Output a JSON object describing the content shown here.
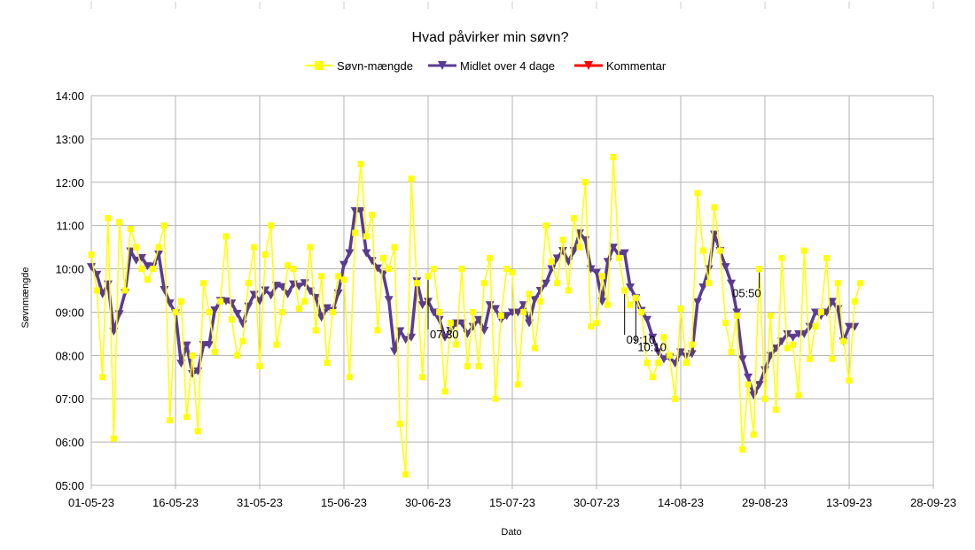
{
  "chart_data": {
    "type": "line",
    "title": "Hvad påvirker min søvn?",
    "xlabel": "Dato",
    "ylabel": "Søvnmængde",
    "x_ticks": [
      "01-05-23",
      "16-05-23",
      "31-05-23",
      "15-06-23",
      "30-06-23",
      "15-07-23",
      "30-07-23",
      "14-08-23",
      "29-08-23",
      "13-09-23",
      "28-09-23"
    ],
    "y_ticks": [
      "05:00",
      "06:00",
      "07:00",
      "08:00",
      "09:00",
      "10:00",
      "11:00",
      "12:00",
      "13:00",
      "14:00"
    ],
    "x_range": [
      "01-05-23",
      "28-09-23"
    ],
    "y_range_hours": [
      5,
      14
    ],
    "grid": true,
    "legend_position": "top",
    "series": [
      {
        "name": "Søvn-mængde",
        "color": "#ffff00",
        "marker": "square",
        "start_date": "01-05-23",
        "values_hours": [
          10.33,
          9.5,
          7.5,
          11.17,
          6.08,
          11.08,
          9.5,
          10.92,
          10.5,
          10.0,
          9.75,
          10.0,
          10.5,
          11.0,
          6.5,
          9.0,
          9.25,
          6.58,
          8.0,
          6.25,
          9.67,
          9.0,
          8.08,
          9.25,
          10.75,
          8.83,
          8.0,
          8.33,
          9.67,
          10.5,
          7.75,
          10.33,
          11.0,
          8.25,
          9.0,
          10.08,
          10.0,
          9.08,
          9.25,
          10.5,
          8.58,
          9.83,
          7.83,
          9.0,
          9.83,
          9.75,
          7.5,
          10.83,
          12.42,
          10.75,
          11.25,
          8.58,
          10.25,
          10.0,
          10.5,
          6.42,
          5.25,
          12.08,
          9.67,
          7.5,
          9.83,
          10.0,
          9.0,
          7.17,
          8.75,
          8.25,
          10.0,
          7.75,
          9.0,
          7.75,
          9.67,
          10.25,
          7.0,
          8.92,
          10.0,
          9.92,
          7.33,
          9.0,
          9.42,
          8.17,
          9.25,
          11.0,
          10.17,
          9.67,
          10.67,
          9.5,
          11.17,
          10.5,
          12.0,
          8.67,
          8.75,
          9.83,
          9.17,
          12.58,
          10.25,
          9.5,
          9.17,
          9.33,
          9.0,
          7.83,
          7.5,
          7.83,
          8.42,
          8.0,
          7.0,
          9.08,
          7.83,
          8.25,
          11.75,
          10.42,
          9.67,
          11.42,
          10.42,
          8.75,
          8.08,
          8.92,
          5.83,
          7.33,
          6.17,
          10.0,
          7.0,
          8.92,
          6.75,
          10.25,
          8.17,
          8.25,
          7.08,
          10.42,
          7.92,
          8.67,
          9.0,
          10.25,
          7.92,
          9.67,
          8.33,
          7.42,
          9.25,
          9.67
        ]
      },
      {
        "name": "Midlet over 4 dage",
        "color": "#5a3b92",
        "marker": "triangle-down",
        "start_date": "01-05-23",
        "values_hours": [
          10.05,
          9.87,
          9.42,
          9.65,
          8.56,
          8.96,
          9.45,
          10.41,
          10.2,
          10.26,
          10.07,
          10.06,
          10.34,
          9.52,
          9.21,
          8.98,
          7.82,
          8.24,
          7.58,
          7.64,
          8.25,
          8.25,
          9.05,
          9.27,
          9.26,
          9.21,
          8.97,
          8.73,
          9.14,
          9.41,
          9.26,
          9.51,
          9.39,
          9.62,
          9.59,
          9.42,
          9.65,
          9.6,
          9.68,
          9.49,
          9.34,
          8.88,
          9.1,
          9.04,
          9.44,
          10.1,
          10.37,
          11.34,
          11.34,
          10.37,
          10.19,
          10.02,
          9.88,
          9.29,
          8.1,
          8.57,
          8.37,
          8.42,
          9.72,
          9.17,
          9.25,
          9.0,
          8.83,
          8.42,
          8.58,
          8.75,
          8.75,
          8.5,
          8.67,
          8.83,
          8.58,
          9.17,
          9.08,
          8.83,
          8.92,
          9.0,
          9.0,
          9.17,
          8.75,
          9.29,
          9.5,
          9.67,
          10.0,
          10.25,
          10.42,
          10.17,
          10.42,
          10.83,
          10.67,
          10.0,
          9.92,
          9.25,
          10.17,
          10.5,
          10.33,
          10.37,
          9.58,
          9.33,
          9.04,
          8.83,
          8.42,
          8.08,
          7.92,
          7.96,
          7.82,
          8.08,
          7.98,
          8.04,
          9.24,
          9.58,
          10.0,
          10.8,
          10.42,
          10.05,
          9.67,
          9.0,
          7.92,
          7.5,
          7.08,
          7.33,
          7.67,
          8.0,
          8.17,
          8.33,
          8.5,
          8.42,
          8.5,
          8.5,
          8.67,
          9.0,
          8.92,
          9.0,
          9.25,
          9.08,
          8.33,
          8.67,
          8.67
        ]
      },
      {
        "name": "Kommentar",
        "color": "#ff0000",
        "marker": "triangle-down",
        "values_hours": []
      }
    ],
    "annotations": [
      {
        "text": "07:30",
        "date": "30-06-23"
      },
      {
        "text": "09:10",
        "date": "04-08-23"
      },
      {
        "text": "10:10",
        "date": "06-08-23"
      },
      {
        "text": "05:50",
        "date": "28-08-23"
      }
    ]
  }
}
